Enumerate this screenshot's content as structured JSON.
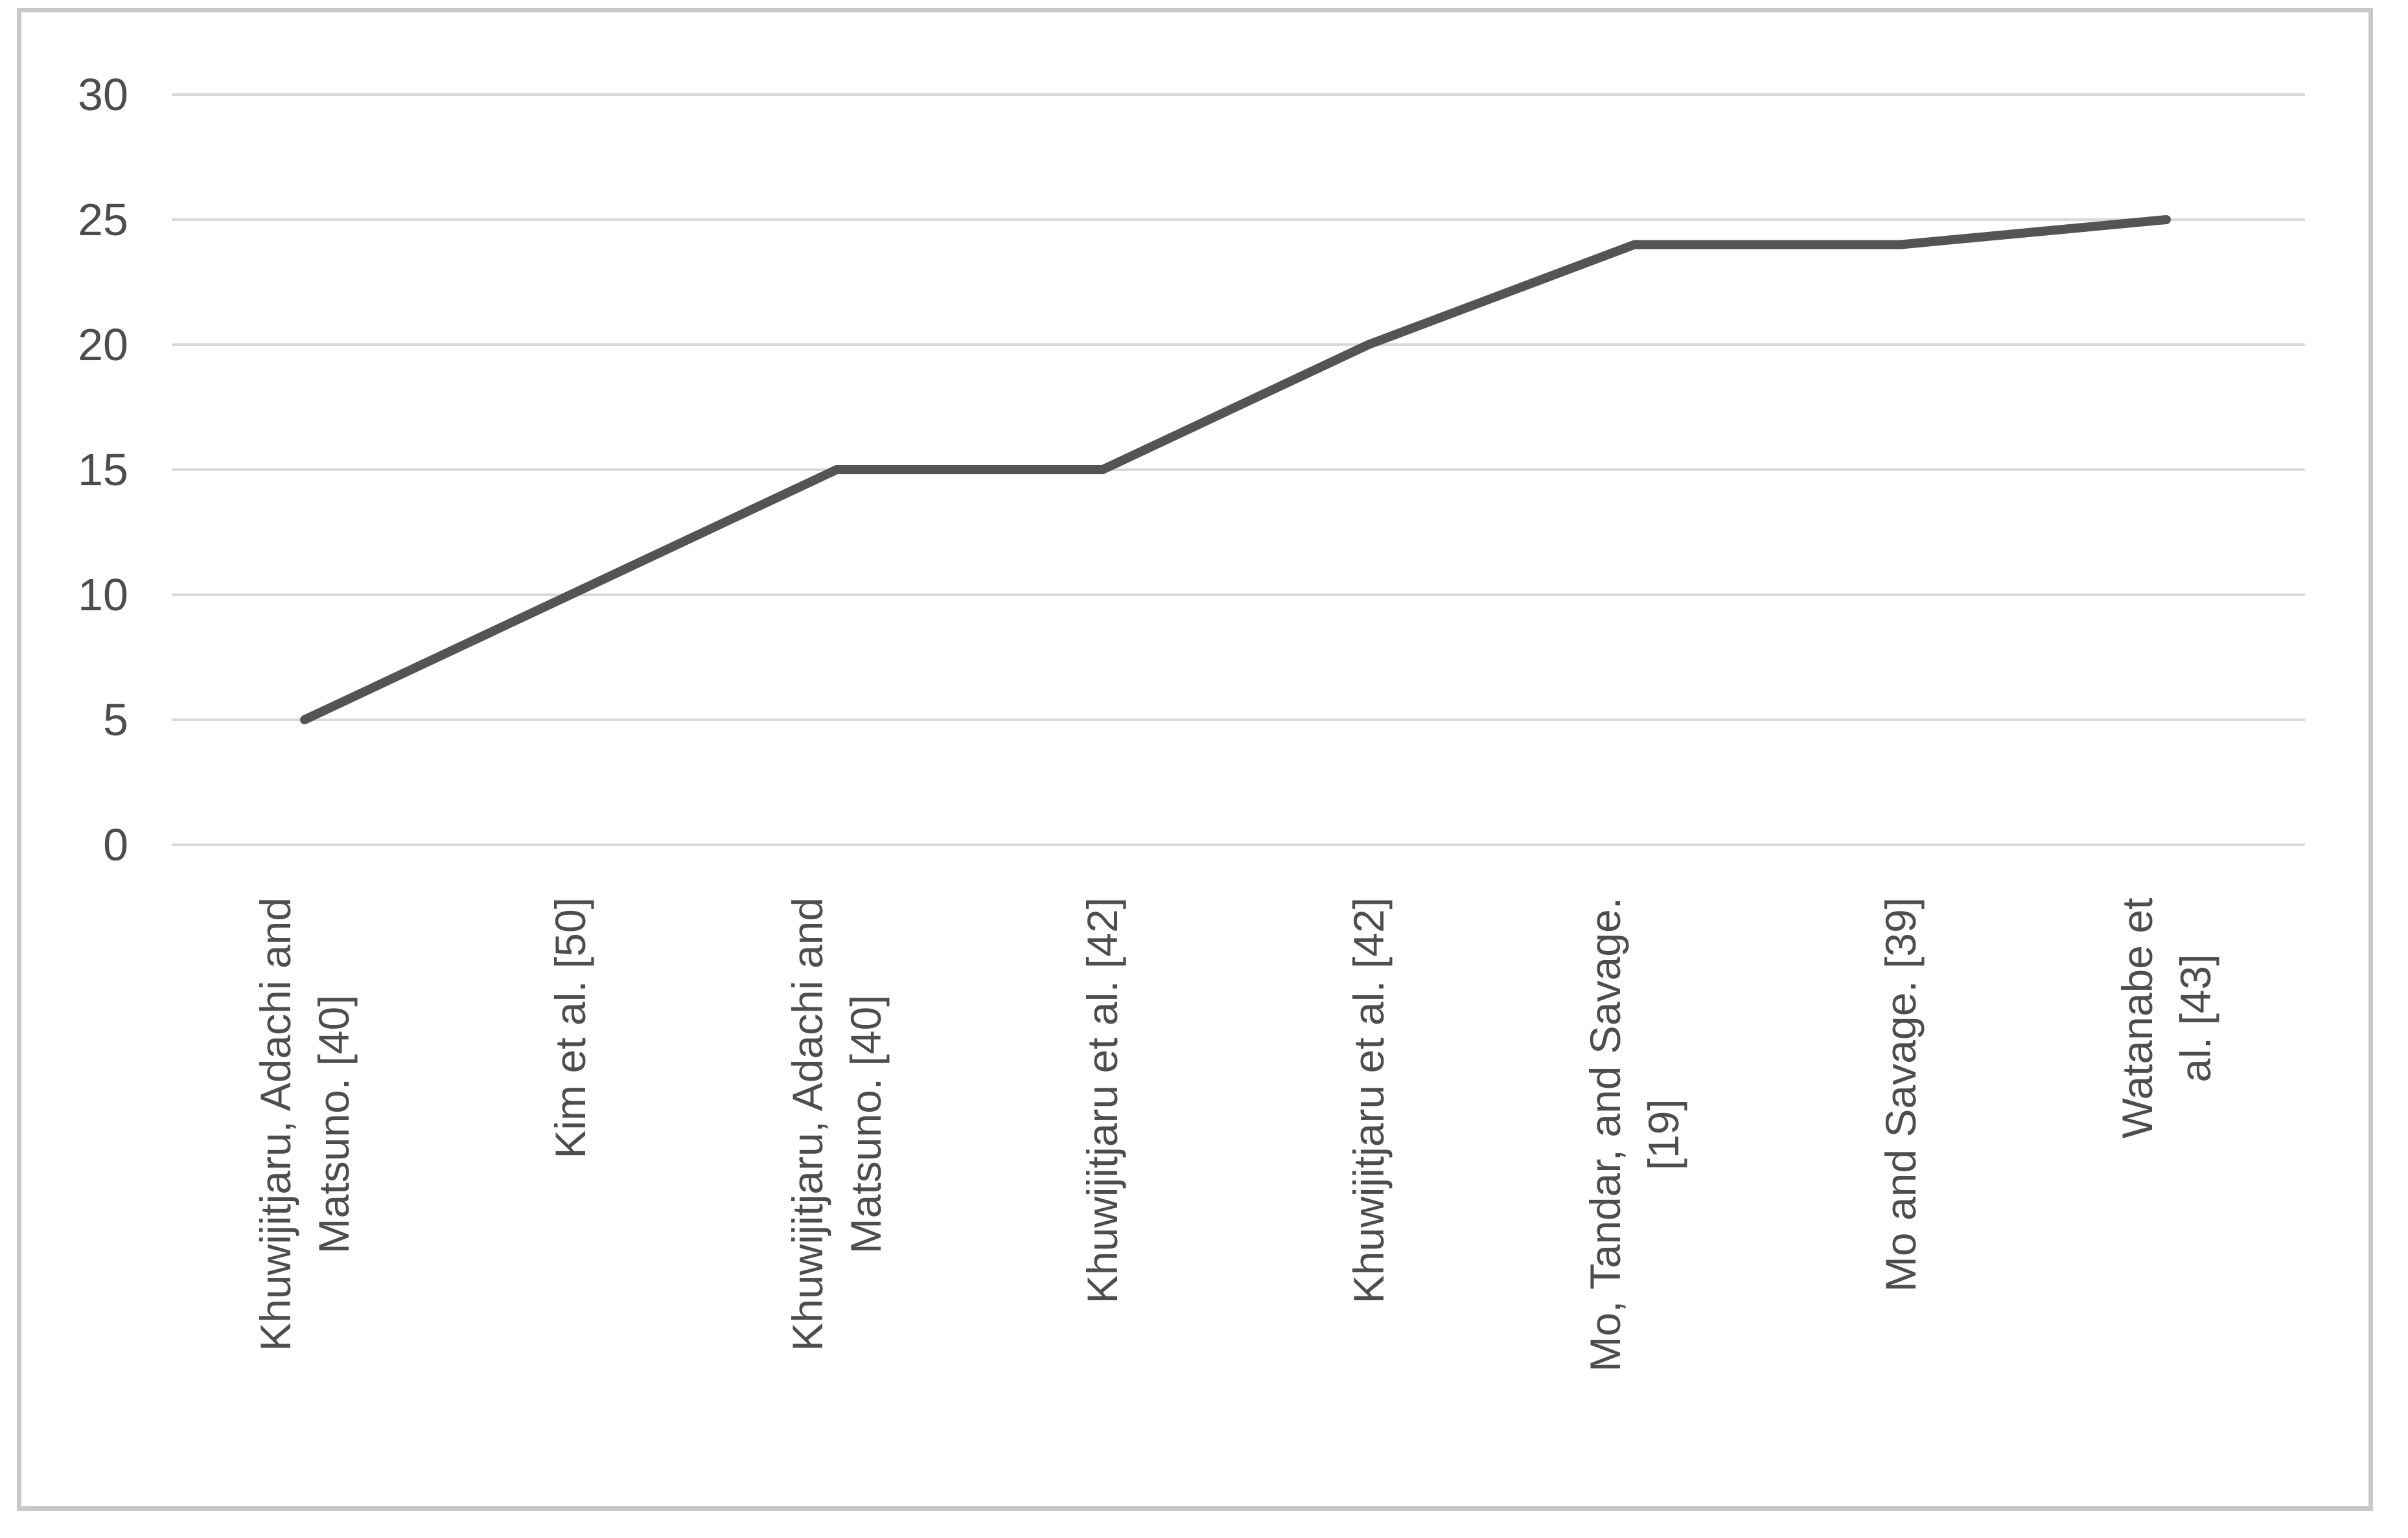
{
  "chart_data": {
    "type": "line",
    "title": "",
    "xlabel": "",
    "ylabel": "",
    "categories": [
      "Khuwijitjaru, Adachi and\nMatsuno. [40]",
      "Kim et al. [50]",
      "Khuwijitjaru, Adachi and\nMatsuno. [40]",
      "Khuwijitjaru et al. [42]",
      "Khuwijitjaru et al. [42]",
      "Mo, Tandar, and Savage.\n[19]",
      "Mo and Savage. [39]",
      "Watanabe et al. [43]"
    ],
    "values": [
      5,
      10,
      15,
      15,
      20,
      24,
      24,
      25
    ],
    "yticks": [
      0,
      5,
      10,
      15,
      20,
      25,
      30
    ],
    "ylim": [
      0,
      30
    ],
    "grid": true,
    "legend": false,
    "line_color": "#545454",
    "gridline_color": "#d9d9d9",
    "text_color": "#4d4d4d",
    "frame_border_color": "#c6c9cb",
    "background_color": "#ffffff"
  }
}
